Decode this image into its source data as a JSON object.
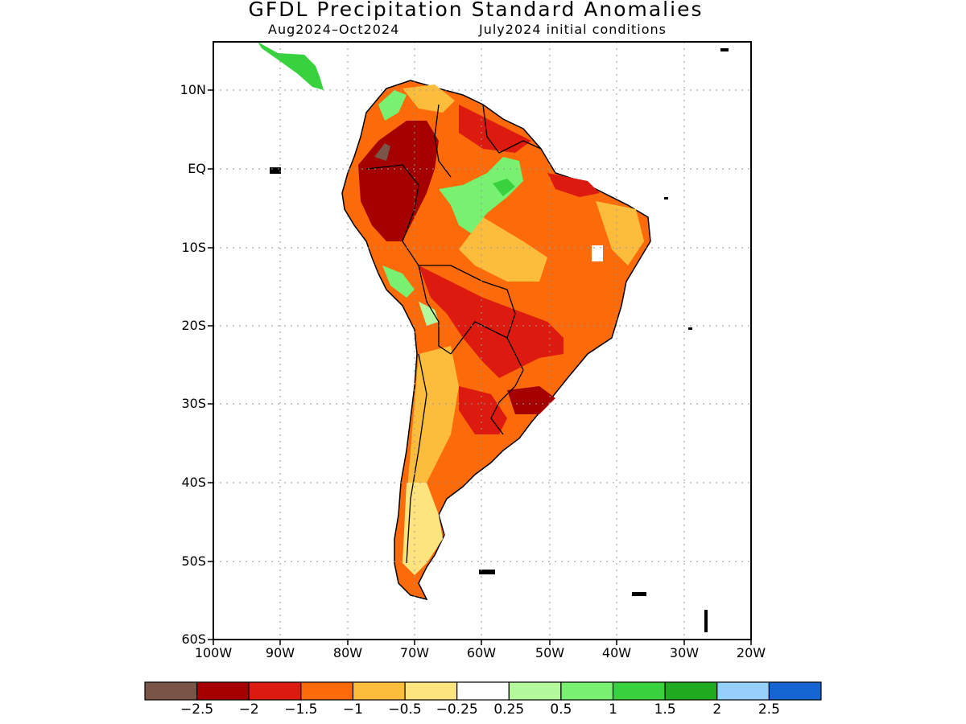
{
  "title": "GFDL Precipitation Standard Anomalies",
  "subtitle_left": "Aug2024–Oct2024",
  "subtitle_right": "July2024 initial conditions",
  "lat_labels": [
    "10N",
    "EQ",
    "10S",
    "20S",
    "30S",
    "40S",
    "50S",
    "60S"
  ],
  "lon_labels": [
    "100W",
    "90W",
    "80W",
    "70W",
    "60W",
    "50W",
    "40W",
    "30W",
    "20W"
  ],
  "colorbar": {
    "colors": [
      "#7a5547",
      "#a40000",
      "#dd1a10",
      "#fd6a0a",
      "#fdbd3c",
      "#fde47e",
      "#ffffff",
      "#b4fa9c",
      "#78f070",
      "#37d23e",
      "#1faa1f",
      "#96d0fa",
      "#1464d2"
    ],
    "labels": [
      "−2.5",
      "−2",
      "−1.5",
      "−1",
      "−0.5",
      "−0.25",
      "0.25",
      "0.5",
      "1",
      "1.5",
      "2",
      "2.5"
    ]
  }
}
